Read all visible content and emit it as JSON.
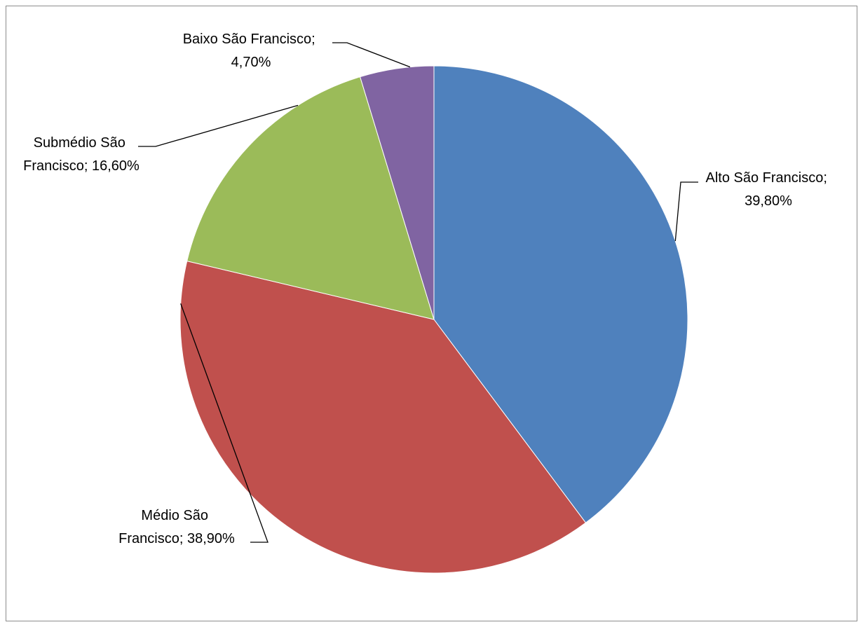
{
  "chart_data": {
    "type": "pie",
    "title": "",
    "slices": [
      {
        "label_lines": [
          "Alto São Francisco;",
          "39,80%"
        ],
        "name": "Alto São Francisco",
        "value": 39.8,
        "color": "#4f81bd"
      },
      {
        "label_lines": [
          "Médio São",
          "Francisco; 38,90%"
        ],
        "name": "Médio São Francisco",
        "value": 38.9,
        "color": "#c0504d"
      },
      {
        "label_lines": [
          "Submédio São",
          "Francisco; 16,60%"
        ],
        "name": "Submédio São Francisco",
        "value": 16.6,
        "color": "#9bbb59"
      },
      {
        "label_lines": [
          "Baixo São Francisco;",
          "4,70%"
        ],
        "name": "Baixo São Francisco",
        "value": 4.7,
        "color": "#8064a2"
      }
    ],
    "legend": "none"
  }
}
